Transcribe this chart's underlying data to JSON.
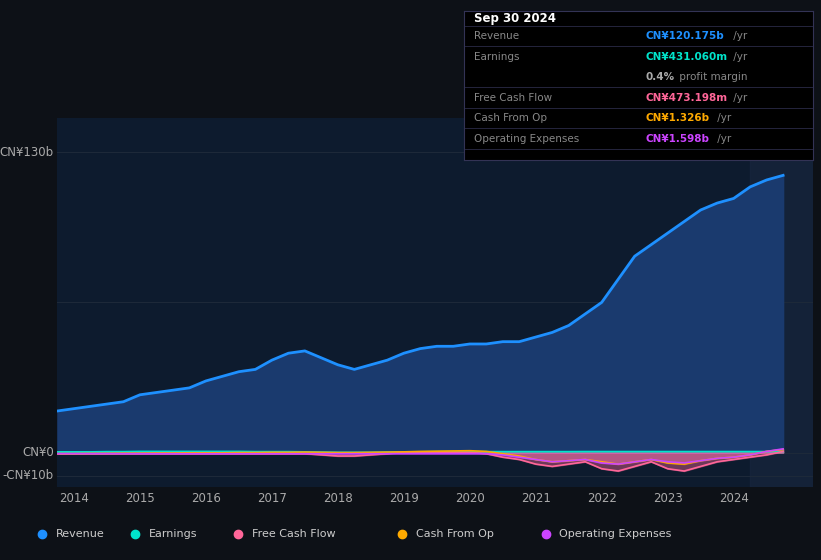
{
  "bg_color": "#0d1117",
  "plot_bg_color": "#0d1b2e",
  "ylim": [
    -15,
    145
  ],
  "yticks": [
    -10,
    0,
    130
  ],
  "ytick_labels": [
    "-CN¥10b",
    "CN¥0",
    "CN¥130b"
  ],
  "years": [
    2013.75,
    2014.0,
    2014.25,
    2014.5,
    2014.75,
    2015.0,
    2015.25,
    2015.5,
    2015.75,
    2016.0,
    2016.25,
    2016.5,
    2016.75,
    2017.0,
    2017.25,
    2017.5,
    2017.75,
    2018.0,
    2018.25,
    2018.5,
    2018.75,
    2019.0,
    2019.25,
    2019.5,
    2019.75,
    2020.0,
    2020.25,
    2020.5,
    2020.75,
    2021.0,
    2021.25,
    2021.5,
    2021.75,
    2022.0,
    2022.25,
    2022.5,
    2022.75,
    2023.0,
    2023.25,
    2023.5,
    2023.75,
    2024.0,
    2024.25,
    2024.5,
    2024.75
  ],
  "revenue": [
    18,
    19,
    20,
    21,
    22,
    25,
    26,
    27,
    28,
    31,
    33,
    35,
    36,
    40,
    43,
    44,
    41,
    38,
    36,
    38,
    40,
    43,
    45,
    46,
    46,
    47,
    47,
    48,
    48,
    50,
    52,
    55,
    60,
    65,
    75,
    85,
    90,
    95,
    100,
    105,
    108,
    110,
    115,
    118,
    120
  ],
  "earnings": [
    0.3,
    0.3,
    0.3,
    0.4,
    0.4,
    0.5,
    0.5,
    0.5,
    0.5,
    0.5,
    0.5,
    0.5,
    0.4,
    0.4,
    0.4,
    0.3,
    0.2,
    0.1,
    0.1,
    0.1,
    0.2,
    0.3,
    0.3,
    0.4,
    0.4,
    0.4,
    0.4,
    0.4,
    0.4,
    0.4,
    0.4,
    0.4,
    0.43,
    0.43,
    0.43,
    0.43,
    0.43,
    0.43,
    0.43,
    0.43,
    0.43,
    0.43,
    0.43,
    0.43,
    0.43
  ],
  "free_cash_flow": [
    -0.5,
    -0.5,
    -0.5,
    -0.5,
    -0.5,
    -0.5,
    -0.5,
    -0.5,
    -0.5,
    -0.5,
    -0.5,
    -0.5,
    -0.5,
    -0.5,
    -0.5,
    -0.5,
    -1.0,
    -1.5,
    -1.5,
    -1.0,
    -0.5,
    0.2,
    0.2,
    0.2,
    0.1,
    0.1,
    -0.5,
    -2.0,
    -3.0,
    -5.0,
    -6.0,
    -5.0,
    -4.0,
    -7.0,
    -8.0,
    -6.0,
    -4.0,
    -7.0,
    -8.0,
    -6.0,
    -4.0,
    -3.0,
    -2.0,
    -1.0,
    0.47
  ],
  "cash_from_op": [
    -0.5,
    -0.5,
    -0.4,
    -0.4,
    -0.3,
    -0.3,
    -0.2,
    -0.2,
    -0.1,
    -0.1,
    -0.1,
    0.0,
    0.0,
    0.1,
    0.1,
    0.2,
    0.1,
    0.0,
    0.0,
    0.1,
    0.2,
    0.3,
    0.5,
    0.6,
    0.7,
    0.8,
    0.5,
    -0.5,
    -1.5,
    -3.0,
    -4.0,
    -3.5,
    -3.0,
    -4.0,
    -5.0,
    -4.0,
    -3.0,
    -4.5,
    -5.0,
    -3.5,
    -2.5,
    -2.0,
    -1.0,
    0.5,
    1.33
  ],
  "operating_expenses": [
    -0.5,
    -0.5,
    -0.5,
    -0.5,
    -0.5,
    -0.5,
    -0.5,
    -0.5,
    -0.5,
    -0.5,
    -0.5,
    -0.5,
    -0.5,
    -0.5,
    -0.5,
    -0.5,
    -0.5,
    -0.5,
    -0.5,
    -0.5,
    -0.5,
    -0.5,
    -0.5,
    -0.5,
    -0.5,
    -0.5,
    -0.5,
    -1.0,
    -2.0,
    -3.0,
    -4.0,
    -3.5,
    -3.0,
    -4.5,
    -5.0,
    -4.0,
    -3.0,
    -4.0,
    -4.5,
    -3.5,
    -2.5,
    -2.0,
    -1.0,
    0.5,
    1.6
  ],
  "revenue_color": "#1e90ff",
  "revenue_fill_color": "#1a3a6e",
  "earnings_color": "#00e5cc",
  "free_cash_flow_color": "#ff6699",
  "cash_from_op_color": "#ffaa00",
  "operating_expenses_color": "#cc44ff",
  "grid_color": "#1e2a3a",
  "text_color": "#aaaaaa",
  "highlight_bg": "#1a2840",
  "info_title": "Sep 30 2024",
  "info_rows": [
    {
      "label": "Revenue",
      "value": "CN¥120.175b",
      "suffix": " /yr",
      "vcolor": "#1e90ff",
      "divider": true
    },
    {
      "label": "Earnings",
      "value": "CN¥431.060m",
      "suffix": " /yr",
      "vcolor": "#00e5cc",
      "divider": false
    },
    {
      "label": "",
      "value": "0.4%",
      "suffix": " profit margin",
      "vcolor": "#aaaaaa",
      "divider": true
    },
    {
      "label": "Free Cash Flow",
      "value": "CN¥473.198m",
      "suffix": " /yr",
      "vcolor": "#ff6699",
      "divider": true
    },
    {
      "label": "Cash From Op",
      "value": "CN¥1.326b",
      "suffix": " /yr",
      "vcolor": "#ffaa00",
      "divider": true
    },
    {
      "label": "Operating Expenses",
      "value": "CN¥1.598b",
      "suffix": " /yr",
      "vcolor": "#cc44ff",
      "divider": true
    }
  ],
  "legend_items": [
    {
      "label": "Revenue",
      "color": "#1e90ff"
    },
    {
      "label": "Earnings",
      "color": "#00e5cc"
    },
    {
      "label": "Free Cash Flow",
      "color": "#ff6699"
    },
    {
      "label": "Cash From Op",
      "color": "#ffaa00"
    },
    {
      "label": "Operating Expenses",
      "color": "#cc44ff"
    }
  ]
}
